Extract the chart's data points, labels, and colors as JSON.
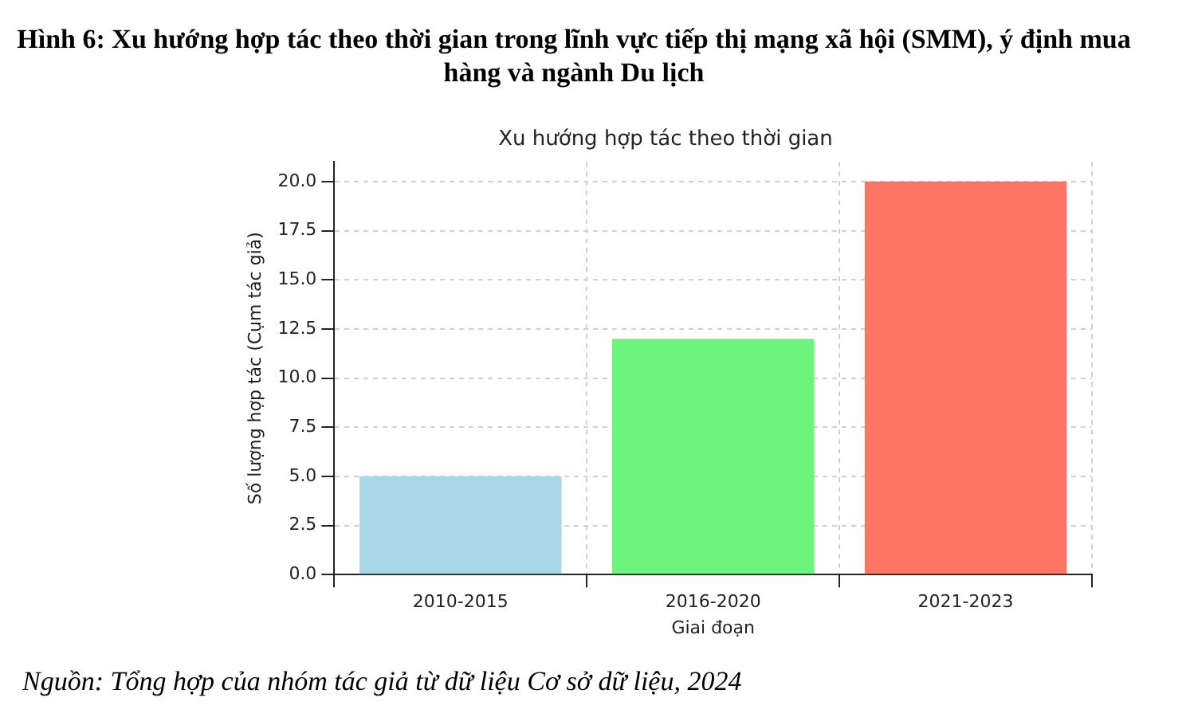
{
  "chart_data": {
    "type": "bar",
    "title": "Hình 6: Xu hướng hợp tác theo thời gian trong lĩnh vực tiếp thị mạng xã hội (SMM), ý định mua hàng và ngành Du lịch",
    "subtitle": "Xu hướng hợp tác theo thời gian",
    "xlabel": "Giai đoạn",
    "ylabel": "Số lượng hợp tác (Cụm tác giả)",
    "categories": [
      "2010-2015",
      "2016-2020",
      "2021-2023"
    ],
    "values": [
      5,
      12,
      20
    ],
    "colors": [
      "#a8d8e8",
      "#6cf47f",
      "#ff7563"
    ],
    "ylim": [
      0,
      21
    ],
    "yticks": [
      {
        "value": 0,
        "label": "0.0"
      },
      {
        "value": 2.5,
        "label": "2.5"
      },
      {
        "value": 5,
        "label": "5.0"
      },
      {
        "value": 7.5,
        "label": "7.5"
      },
      {
        "value": 10,
        "label": "10.0"
      },
      {
        "value": 12.5,
        "label": "12.5"
      },
      {
        "value": 15,
        "label": "15.0"
      },
      {
        "value": 17.5,
        "label": "17.5"
      },
      {
        "value": 20,
        "label": "20.0"
      }
    ],
    "grid": true,
    "annotations": [
      "Nguồn:  Tổng hợp của nhóm tác giả từ dữ liệu Cơ sở dữ liệu, 2024"
    ]
  }
}
